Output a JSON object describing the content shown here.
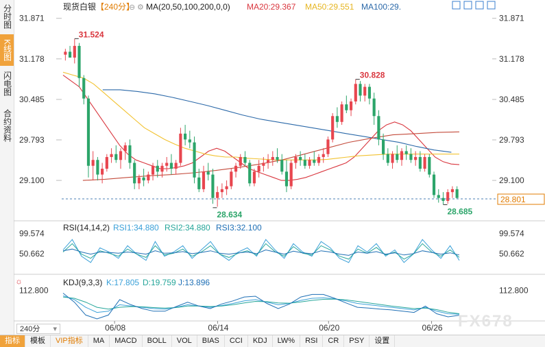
{
  "sidebar": {
    "items": [
      {
        "label": "分时图",
        "active": false
      },
      {
        "label": "K线图",
        "active": true
      },
      {
        "label": "闪电图",
        "active": false
      },
      {
        "label": "合约资料",
        "active": false
      }
    ]
  },
  "header": {
    "symbol": "现货白银",
    "period_tag": "【240分】",
    "ma_label": "MA(20,50,100,200,0,0)",
    "ma20": "MA20:29.367",
    "ma50": "MA50:29.551",
    "ma100": "MA100:29."
  },
  "colors": {
    "up": "#e8464f",
    "down": "#2ca56a",
    "ma20": "#d9363e",
    "ma50": "#f2c230",
    "ma100": "#2a68a8",
    "ma200": "#c34a3a",
    "rsi1": "#3aa0d8",
    "rsi2": "#26a69a",
    "rsi3": "#1e6fb5",
    "k": "#3aa0d8",
    "d": "#26a69a",
    "j": "#1e6fb5",
    "axis_text": "#333333",
    "price_tag": "#e07b00"
  },
  "main_axis": {
    "ticks": [
      "31.871",
      "31.178",
      "30.485",
      "29.793",
      "29.100"
    ],
    "current_price": "28.801"
  },
  "annotations": {
    "high_1": "31.524",
    "low_1": "28.634",
    "high_2": "30.828",
    "low_2": "28.685"
  },
  "rsi": {
    "label": "RSI(14,14,2)",
    "rsi1": "RSI1:34.880",
    "rsi2": "RSI2:34.880",
    "rsi3": "RSI3:32.100",
    "ticks": [
      "99.574",
      "50.662"
    ]
  },
  "kdj": {
    "label": "KDJ(9,3,3)",
    "k": "K:17.805",
    "d": "D:19.759",
    "j": "J:13.896",
    "ticks": [
      "112.800"
    ]
  },
  "dates": [
    "06/08",
    "06/14",
    "06/20",
    "06/26"
  ],
  "period_select": "240分",
  "toolbar": [
    "指标",
    "模板",
    "VIP指标",
    "MA",
    "MACD",
    "BOLL",
    "VOL",
    "BIAS",
    "CCI",
    "KDJ",
    "LW%",
    "RSI",
    "CR",
    "PSY",
    "设置"
  ],
  "watermark": "FX678",
  "chart_data": {
    "type": "candlestick",
    "ylim": [
      28.55,
      31.95
    ],
    "candles": [
      [
        31.25,
        31.35,
        31.15,
        31.3
      ],
      [
        31.3,
        31.4,
        31.2,
        31.2
      ],
      [
        31.2,
        31.52,
        31.1,
        31.4
      ],
      [
        31.4,
        31.45,
        30.7,
        30.85
      ],
      [
        30.85,
        30.9,
        30.4,
        30.5
      ],
      [
        30.5,
        30.55,
        29.15,
        29.35
      ],
      [
        29.35,
        29.6,
        29.1,
        29.45
      ],
      [
        29.45,
        29.5,
        29.1,
        29.2
      ],
      [
        29.2,
        29.4,
        29.05,
        29.3
      ],
      [
        29.3,
        29.55,
        29.25,
        29.5
      ],
      [
        29.5,
        29.65,
        29.4,
        29.55
      ],
      [
        29.55,
        29.7,
        29.4,
        29.45
      ],
      [
        29.45,
        29.65,
        29.3,
        29.6
      ],
      [
        29.6,
        29.75,
        29.45,
        29.7
      ],
      [
        29.7,
        29.8,
        29.3,
        29.4
      ],
      [
        29.4,
        29.45,
        28.95,
        29.05
      ],
      [
        29.05,
        29.2,
        28.95,
        29.15
      ],
      [
        29.15,
        29.3,
        29.0,
        29.1
      ],
      [
        29.1,
        29.25,
        29.05,
        29.2
      ],
      [
        29.2,
        29.4,
        29.1,
        29.35
      ],
      [
        29.35,
        29.45,
        29.15,
        29.25
      ],
      [
        29.25,
        29.4,
        29.15,
        29.35
      ],
      [
        29.35,
        29.5,
        29.25,
        29.4
      ],
      [
        29.4,
        29.55,
        29.2,
        29.3
      ],
      [
        29.3,
        29.45,
        29.2,
        29.4
      ],
      [
        29.4,
        30.0,
        29.35,
        29.9
      ],
      [
        29.9,
        30.05,
        29.7,
        29.8
      ],
      [
        29.8,
        29.95,
        29.65,
        29.75
      ],
      [
        29.75,
        29.85,
        29.05,
        29.15
      ],
      [
        29.15,
        29.3,
        28.9,
        28.95
      ],
      [
        28.95,
        29.35,
        28.9,
        29.25
      ],
      [
        29.25,
        29.4,
        29.1,
        29.2
      ],
      [
        29.2,
        29.3,
        28.7,
        28.8
      ],
      [
        28.8,
        29.0,
        28.65,
        28.9
      ],
      [
        28.9,
        29.05,
        28.8,
        28.95
      ],
      [
        28.95,
        29.1,
        28.85,
        29.0
      ],
      [
        29.0,
        29.3,
        28.95,
        29.25
      ],
      [
        29.25,
        29.4,
        29.15,
        29.35
      ],
      [
        29.35,
        29.55,
        29.3,
        29.5
      ],
      [
        29.5,
        29.6,
        29.35,
        29.4
      ],
      [
        29.4,
        29.45,
        29.0,
        29.05
      ],
      [
        29.05,
        29.3,
        29.0,
        29.25
      ],
      [
        29.25,
        29.45,
        29.15,
        29.35
      ],
      [
        29.35,
        29.5,
        29.25,
        29.4
      ],
      [
        29.4,
        29.55,
        29.3,
        29.45
      ],
      [
        29.45,
        29.6,
        29.35,
        29.5
      ],
      [
        29.5,
        29.65,
        29.4,
        29.45
      ],
      [
        29.45,
        29.55,
        29.2,
        29.25
      ],
      [
        29.25,
        29.45,
        28.9,
        29.0
      ],
      [
        29.0,
        29.45,
        28.95,
        29.4
      ],
      [
        29.4,
        29.55,
        29.3,
        29.5
      ],
      [
        29.5,
        29.6,
        29.35,
        29.45
      ],
      [
        29.45,
        29.55,
        29.3,
        29.35
      ],
      [
        29.35,
        29.5,
        29.3,
        29.45
      ],
      [
        29.45,
        29.6,
        29.35,
        29.4
      ],
      [
        29.4,
        29.55,
        29.35,
        29.5
      ],
      [
        29.5,
        29.65,
        29.4,
        29.55
      ],
      [
        29.55,
        29.85,
        29.5,
        29.8
      ],
      [
        29.8,
        30.25,
        29.75,
        30.2
      ],
      [
        30.2,
        30.35,
        30.0,
        30.1
      ],
      [
        30.1,
        30.45,
        30.05,
        30.4
      ],
      [
        30.4,
        30.55,
        30.25,
        30.3
      ],
      [
        30.3,
        30.5,
        30.2,
        30.45
      ],
      [
        30.45,
        30.83,
        30.4,
        30.75
      ],
      [
        30.75,
        30.8,
        30.45,
        30.55
      ],
      [
        30.55,
        30.75,
        30.45,
        30.7
      ],
      [
        30.7,
        30.75,
        30.4,
        30.5
      ],
      [
        30.5,
        30.6,
        30.05,
        30.2
      ],
      [
        30.2,
        30.3,
        29.7,
        29.8
      ],
      [
        29.8,
        29.9,
        29.45,
        29.55
      ],
      [
        29.55,
        29.65,
        29.35,
        29.4
      ],
      [
        29.4,
        29.6,
        29.3,
        29.55
      ],
      [
        29.55,
        29.7,
        29.4,
        29.45
      ],
      [
        29.45,
        29.65,
        29.35,
        29.6
      ],
      [
        29.6,
        29.7,
        29.45,
        29.55
      ],
      [
        29.55,
        29.65,
        29.4,
        29.45
      ],
      [
        29.45,
        29.6,
        29.35,
        29.5
      ],
      [
        29.5,
        29.6,
        29.25,
        29.3
      ],
      [
        29.3,
        29.55,
        29.25,
        29.5
      ],
      [
        29.5,
        29.55,
        29.15,
        29.2
      ],
      [
        29.2,
        29.25,
        28.8,
        28.85
      ],
      [
        28.85,
        28.95,
        28.72,
        28.8
      ],
      [
        28.8,
        28.9,
        28.69,
        28.75
      ],
      [
        28.75,
        28.95,
        28.7,
        28.9
      ],
      [
        28.9,
        29.0,
        28.8,
        28.95
      ],
      [
        28.95,
        29.0,
        28.78,
        28.8
      ]
    ],
    "ma_series": [
      {
        "name": "MA20",
        "points": [
          30.9,
          30.8,
          30.7,
          30.5,
          30.3,
          30.1,
          29.9,
          29.7,
          29.55,
          29.45,
          29.4,
          29.35,
          29.3,
          29.3,
          29.32,
          29.35,
          29.4,
          29.5,
          29.6,
          29.65,
          29.6,
          29.5,
          29.4,
          29.3,
          29.25,
          29.2,
          29.15,
          29.1,
          29.1,
          29.12,
          29.15,
          29.2,
          29.25,
          29.3,
          29.35,
          29.4,
          29.5,
          29.65,
          29.8,
          29.95,
          30.05,
          30.1,
          30.05,
          29.95,
          29.8,
          29.65,
          29.5,
          29.42,
          29.38,
          29.37
        ]
      },
      {
        "name": "MA50",
        "points": [
          30.95,
          30.9,
          30.85,
          30.75,
          30.6,
          30.45,
          30.3,
          30.15,
          30.0,
          29.9,
          29.8,
          29.72,
          29.65,
          29.6,
          29.55,
          29.52,
          29.5,
          29.5,
          29.48,
          29.47,
          29.46,
          29.45,
          29.45,
          29.45,
          29.45,
          29.45,
          29.46,
          29.48,
          29.5,
          29.52,
          29.53,
          29.54,
          29.55,
          29.55,
          29.55,
          29.55,
          29.55,
          29.55,
          29.55,
          29.55
        ]
      },
      {
        "name": "MA100",
        "points": [
          30.65,
          30.65,
          30.62,
          30.58,
          30.52,
          30.45,
          30.38,
          30.3,
          30.22,
          30.15,
          30.1,
          30.05,
          30.0,
          29.95,
          29.9,
          29.85,
          29.8,
          29.75,
          29.68,
          29.62,
          29.58
        ]
      },
      {
        "name": "MA200",
        "points": [
          29.1,
          29.12,
          29.15,
          29.18,
          29.2,
          29.23,
          29.27,
          29.32,
          29.38,
          29.45,
          29.55,
          29.65,
          29.75,
          29.82,
          29.88,
          29.9,
          29.92,
          29.93
        ]
      }
    ],
    "rsi_series": [
      {
        "name": "RSI1",
        "points": [
          60,
          85,
          45,
          30,
          65,
          55,
          40,
          70,
          50,
          35,
          80,
          45,
          55,
          70,
          40,
          60,
          80,
          50,
          35,
          55,
          65,
          45,
          85,
          60,
          40,
          75,
          55,
          45,
          80,
          65,
          40,
          30,
          70,
          55,
          75,
          45,
          60,
          30,
          50,
          85,
          60,
          40,
          70,
          35
        ]
      },
      {
        "name": "RSI2",
        "points": [
          55,
          75,
          50,
          40,
          58,
          52,
          45,
          62,
          50,
          42,
          70,
          48,
          52,
          62,
          45,
          55,
          70,
          50,
          42,
          52,
          58,
          48,
          75,
          56,
          45,
          68,
          52,
          48,
          70,
          60,
          45,
          38,
          62,
          52,
          66,
          48,
          55,
          38,
          50,
          75,
          55,
          45,
          60,
          42
        ]
      },
      {
        "name": "RSI3",
        "points": [
          58,
          62,
          55,
          50,
          55,
          54,
          52,
          55,
          53,
          50,
          58,
          52,
          53,
          56,
          51,
          54,
          58,
          52,
          50,
          53,
          55,
          51,
          60,
          55,
          50,
          57,
          53,
          51,
          58,
          55,
          50,
          47,
          55,
          52,
          56,
          50,
          53,
          48,
          51,
          58,
          54,
          50,
          53,
          48
        ]
      }
    ],
    "kdj_series": [
      {
        "name": "K",
        "points": [
          90,
          75,
          45,
          25,
          30,
          55,
          50,
          45,
          40,
          38,
          45,
          55,
          50,
          45,
          52,
          60,
          70,
          75,
          65,
          55,
          60,
          72,
          80,
          82,
          78,
          70,
          60,
          55,
          50,
          45,
          40,
          35,
          45,
          30,
          20,
          18
        ]
      },
      {
        "name": "D",
        "points": [
          85,
          80,
          65,
          45,
          38,
          45,
          48,
          47,
          44,
          42,
          44,
          50,
          50,
          48,
          50,
          55,
          62,
          68,
          67,
          62,
          61,
          66,
          72,
          76,
          77,
          74,
          68,
          62,
          56,
          50,
          45,
          40,
          42,
          36,
          26,
          20
        ]
      },
      {
        "name": "J",
        "points": [
          100,
          65,
          15,
          0,
          15,
          75,
          55,
          40,
          30,
          30,
          48,
          65,
          50,
          40,
          58,
          70,
          85,
          88,
          60,
          40,
          58,
          85,
          95,
          95,
          80,
          62,
          45,
          42,
          38,
          35,
          30,
          25,
          50,
          20,
          8,
          14
        ]
      }
    ]
  }
}
